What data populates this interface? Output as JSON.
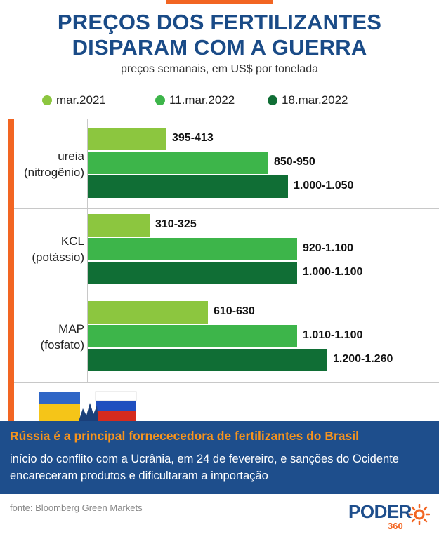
{
  "header": {
    "title_line1": "PREÇOS DOS FERTILIZANTES",
    "title_line2": "DISPARAM COM A GUERRA",
    "subtitle": "preços semanais, em US$ por tonelada"
  },
  "colors": {
    "accent_orange": "#f26522",
    "title_blue": "#1a4b87",
    "banner_blue": "#1e4e8c",
    "banner_head": "#f7941d"
  },
  "chart_data": {
    "type": "bar",
    "orientation": "horizontal",
    "title": "PREÇOS DOS FERTILIZANTES DISPARAM COM A GUERRA",
    "subtitle": "preços semanais, em US$ por tonelada",
    "xlim": [
      0,
      1300
    ],
    "grid": false,
    "legend_position": "top",
    "categories": [
      {
        "line1": "ureia",
        "line2": "(nitrogênio)"
      },
      {
        "line1": "KCL",
        "line2": "(potássio)"
      },
      {
        "line1": "MAP",
        "line2": "(fosfato)"
      }
    ],
    "series": [
      {
        "name": "mar.2021",
        "color": "#8cc63f",
        "values": [
          413,
          325,
          630
        ],
        "labels": [
          "395-413",
          "310-325",
          "610-630"
        ]
      },
      {
        "name": "11.mar.2022",
        "color": "#3db54a",
        "values": [
          950,
          1100,
          1100
        ],
        "labels": [
          "850-950",
          "920-1.100",
          "1.010-1.100"
        ]
      },
      {
        "name": "18.mar.2022",
        "color": "#106e35",
        "values": [
          1050,
          1100,
          1260
        ],
        "labels": [
          "1.000-1.050",
          "1.000-1.100",
          "1.200-1.260"
        ]
      }
    ]
  },
  "banner": {
    "headline": "Rússia é a principal fornececedora de fertilizantes do Brasil",
    "body": "início do conflito com a Ucrânia, em 24 de fevereiro, e sanções do Ocidente encareceram produtos e dificultaram a importação"
  },
  "footer": {
    "source": "fonte: Bloomberg Green Markets",
    "logo_word": "PODER",
    "logo_number": "360"
  }
}
